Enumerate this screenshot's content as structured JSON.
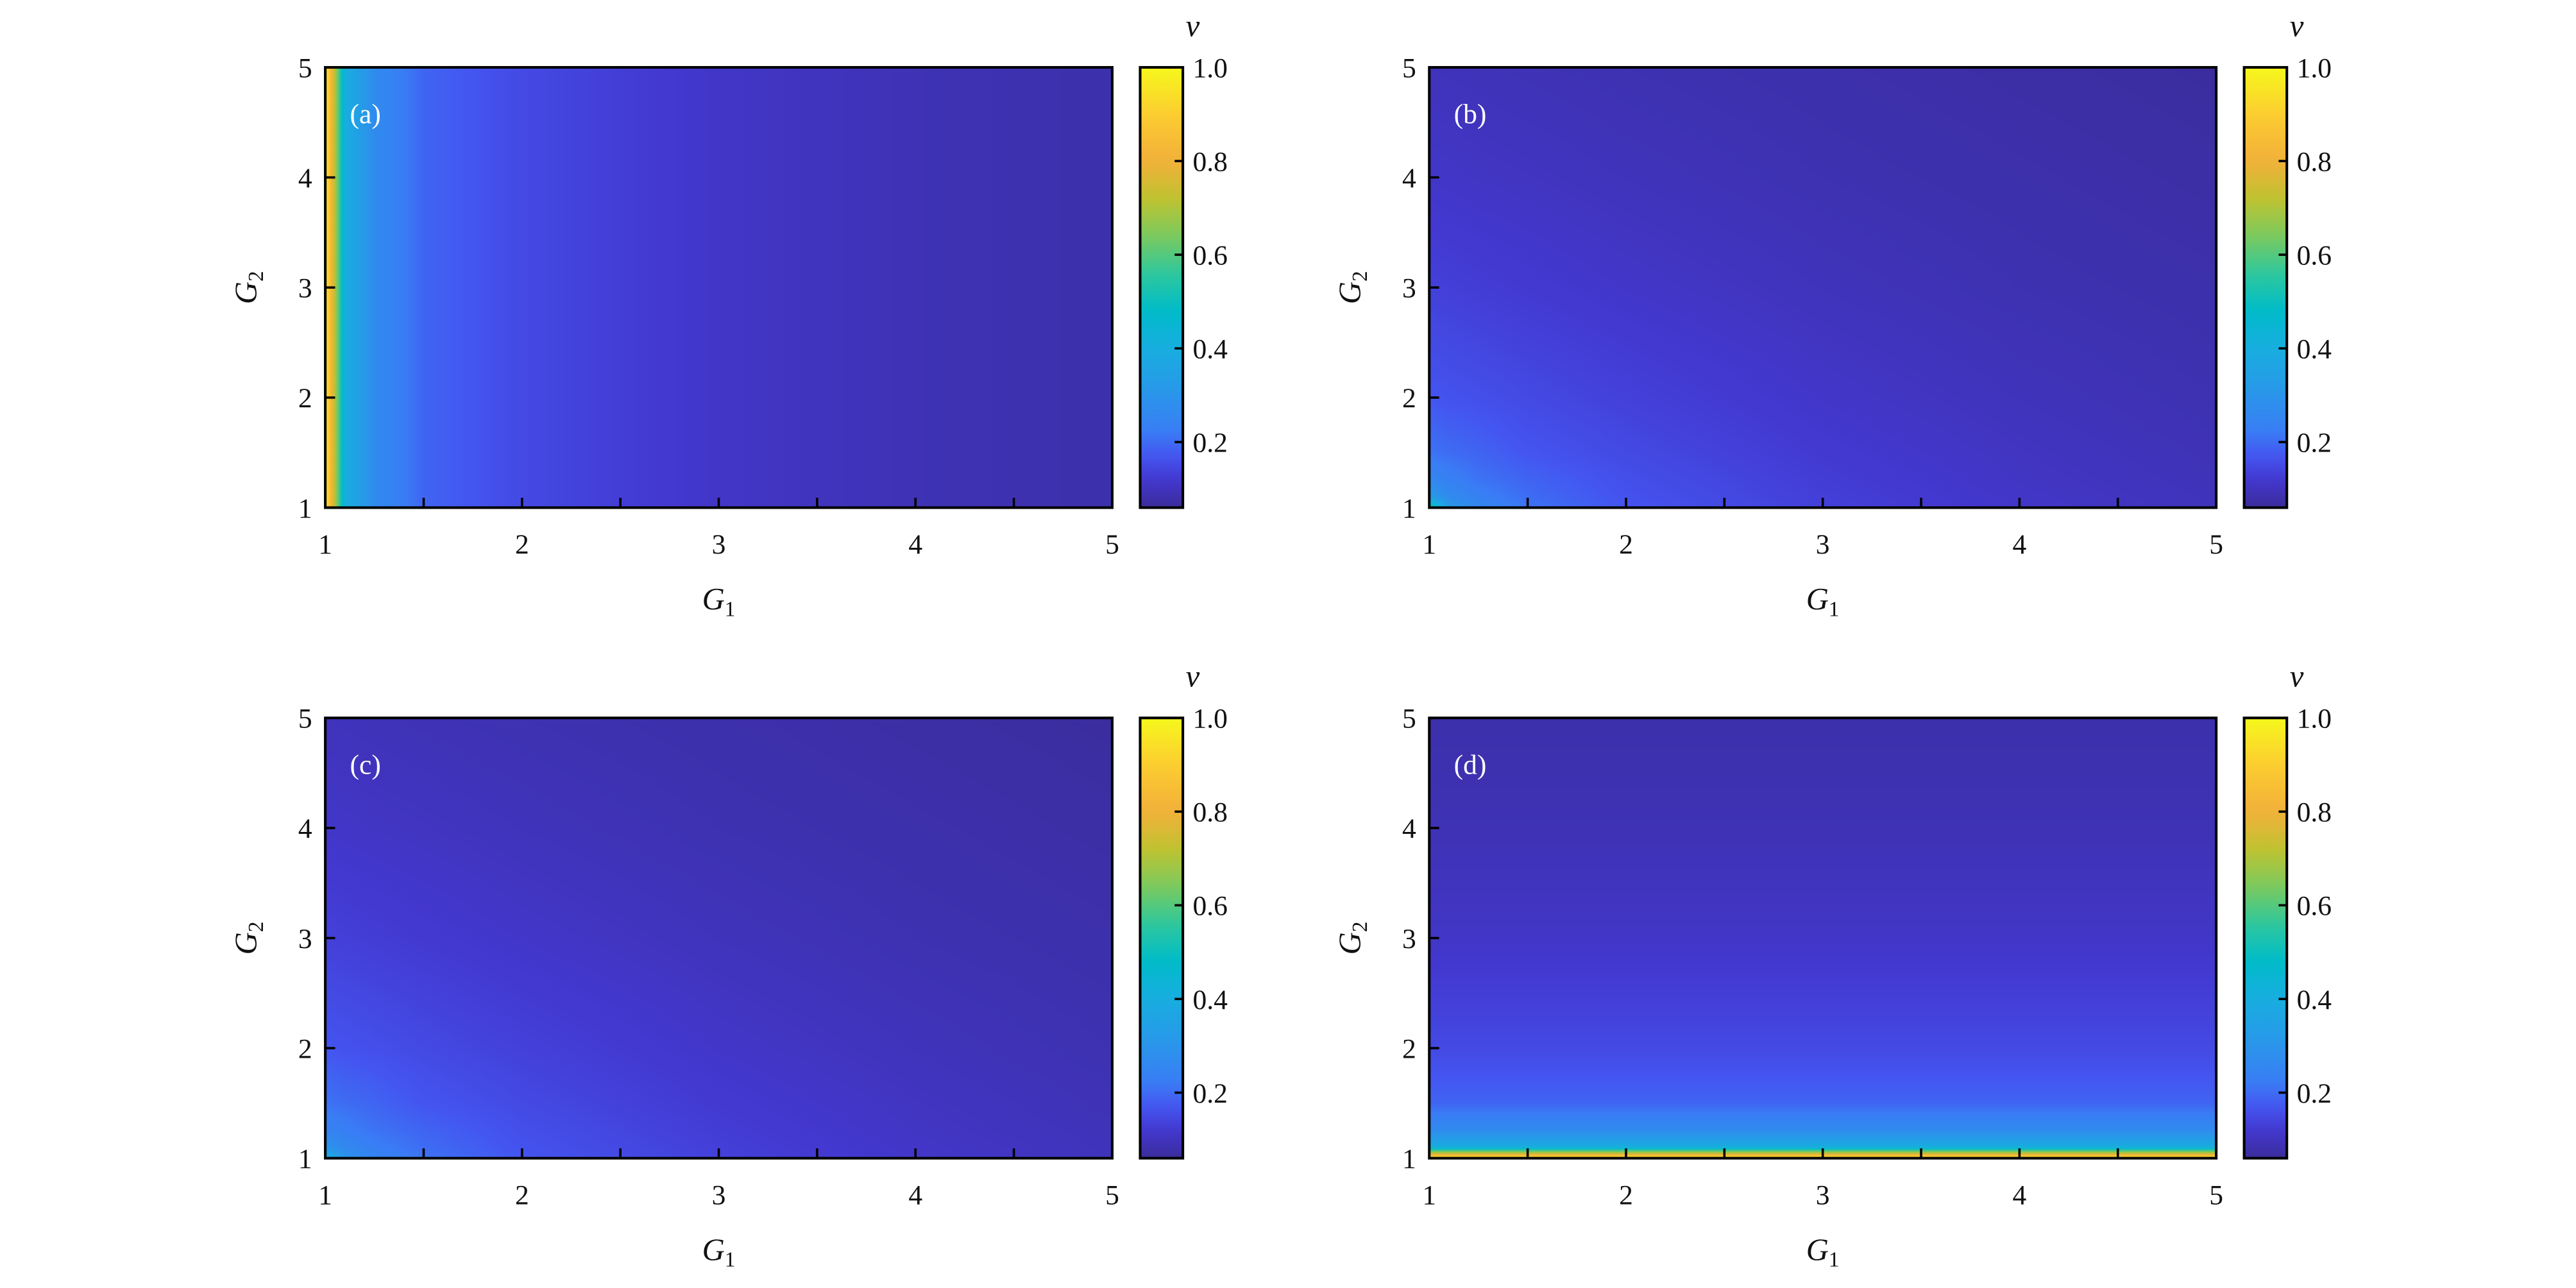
{
  "chart_data": [
    {
      "type": "heatmap",
      "panel_label": "(a)",
      "xlabel": "G",
      "xlabel_sub": "1",
      "ylabel": "G",
      "ylabel_sub": "2",
      "colorbar_label": "v",
      "xlim": [
        1,
        5
      ],
      "ylim": [
        1,
        5
      ],
      "clim": [
        0.06,
        1.0
      ],
      "xticks": [
        "1",
        "2",
        "3",
        "4",
        "5"
      ],
      "yticks": [
        "1",
        "2",
        "3",
        "4",
        "5"
      ],
      "cticks": [
        "0.2",
        "0.4",
        "0.6",
        "0.8",
        "1.0"
      ],
      "x": [
        1,
        1.1,
        1.25,
        1.5,
        2,
        3,
        4,
        5
      ],
      "y": [
        1,
        1.1,
        1.25,
        1.5,
        2,
        3,
        4,
        5
      ],
      "z": [
        [
          1.0,
          0.4,
          0.27,
          0.19,
          0.15,
          0.11,
          0.09,
          0.08
        ],
        [
          1.0,
          0.4,
          0.27,
          0.19,
          0.15,
          0.11,
          0.09,
          0.08
        ],
        [
          1.0,
          0.4,
          0.27,
          0.19,
          0.15,
          0.11,
          0.09,
          0.08
        ],
        [
          1.0,
          0.4,
          0.27,
          0.19,
          0.15,
          0.11,
          0.09,
          0.08
        ],
        [
          1.0,
          0.4,
          0.27,
          0.19,
          0.15,
          0.11,
          0.09,
          0.08
        ],
        [
          1.0,
          0.4,
          0.27,
          0.19,
          0.15,
          0.11,
          0.09,
          0.08
        ],
        [
          1.0,
          0.4,
          0.27,
          0.19,
          0.15,
          0.11,
          0.09,
          0.08
        ],
        [
          1.0,
          0.4,
          0.27,
          0.19,
          0.15,
          0.11,
          0.09,
          0.08
        ]
      ]
    },
    {
      "type": "heatmap",
      "panel_label": "(b)",
      "xlabel": "G",
      "xlabel_sub": "1",
      "ylabel": "G",
      "ylabel_sub": "2",
      "colorbar_label": "v",
      "xlim": [
        1,
        5
      ],
      "ylim": [
        1,
        5
      ],
      "clim": [
        0.06,
        1.0
      ],
      "xticks": [
        "1",
        "2",
        "3",
        "4",
        "5"
      ],
      "yticks": [
        "1",
        "2",
        "3",
        "4",
        "5"
      ],
      "cticks": [
        "0.2",
        "0.4",
        "0.6",
        "0.8",
        "1.0"
      ],
      "x": [
        1,
        1.1,
        1.25,
        1.5,
        2,
        3,
        4,
        5
      ],
      "y": [
        1,
        1.1,
        1.25,
        1.5,
        2,
        3,
        4,
        5
      ],
      "z": [
        [
          0.55,
          0.32,
          0.26,
          0.21,
          0.17,
          0.135,
          0.112,
          0.097
        ],
        [
          0.32,
          0.27,
          0.235,
          0.2,
          0.165,
          0.132,
          0.11,
          0.096
        ],
        [
          0.26,
          0.235,
          0.21,
          0.19,
          0.16,
          0.128,
          0.107,
          0.094
        ],
        [
          0.21,
          0.2,
          0.19,
          0.17,
          0.15,
          0.122,
          0.104,
          0.091
        ],
        [
          0.17,
          0.165,
          0.16,
          0.15,
          0.135,
          0.112,
          0.097,
          0.086
        ],
        [
          0.135,
          0.132,
          0.128,
          0.122,
          0.112,
          0.097,
          0.086,
          0.079
        ],
        [
          0.112,
          0.11,
          0.107,
          0.104,
          0.097,
          0.086,
          0.079,
          0.072
        ],
        [
          0.097,
          0.096,
          0.094,
          0.091,
          0.086,
          0.079,
          0.072,
          0.066
        ]
      ]
    },
    {
      "type": "heatmap",
      "panel_label": "(c)",
      "xlabel": "G",
      "xlabel_sub": "1",
      "ylabel": "G",
      "ylabel_sub": "2",
      "colorbar_label": "v",
      "xlim": [
        1,
        5
      ],
      "ylim": [
        1,
        5
      ],
      "clim": [
        0.06,
        1.0
      ],
      "xticks": [
        "1",
        "2",
        "3",
        "4",
        "5"
      ],
      "yticks": [
        "1",
        "2",
        "3",
        "4",
        "5"
      ],
      "cticks": [
        "0.2",
        "0.4",
        "0.6",
        "0.8",
        "1.0"
      ],
      "x": [
        1,
        1.1,
        1.25,
        1.5,
        2,
        3,
        4,
        5
      ],
      "y": [
        1,
        1.1,
        1.25,
        1.5,
        2,
        3,
        4,
        5
      ],
      "z": [
        [
          0.42,
          0.3,
          0.25,
          0.21,
          0.17,
          0.135,
          0.112,
          0.097
        ],
        [
          0.3,
          0.26,
          0.23,
          0.2,
          0.165,
          0.132,
          0.11,
          0.096
        ],
        [
          0.25,
          0.23,
          0.21,
          0.19,
          0.16,
          0.128,
          0.107,
          0.094
        ],
        [
          0.21,
          0.2,
          0.19,
          0.17,
          0.15,
          0.122,
          0.104,
          0.091
        ],
        [
          0.17,
          0.165,
          0.16,
          0.15,
          0.135,
          0.112,
          0.097,
          0.086
        ],
        [
          0.135,
          0.132,
          0.128,
          0.122,
          0.112,
          0.097,
          0.086,
          0.079
        ],
        [
          0.112,
          0.11,
          0.107,
          0.104,
          0.097,
          0.086,
          0.079,
          0.072
        ],
        [
          0.097,
          0.096,
          0.094,
          0.091,
          0.086,
          0.079,
          0.072,
          0.066
        ]
      ]
    },
    {
      "type": "heatmap",
      "panel_label": "(d)",
      "xlabel": "G",
      "xlabel_sub": "1",
      "ylabel": "G",
      "ylabel_sub": "2",
      "colorbar_label": "v",
      "xlim": [
        1,
        5
      ],
      "ylim": [
        1,
        5
      ],
      "clim": [
        0.06,
        1.0
      ],
      "xticks": [
        "1",
        "2",
        "3",
        "4",
        "5"
      ],
      "yticks": [
        "1",
        "2",
        "3",
        "4",
        "5"
      ],
      "cticks": [
        "0.2",
        "0.4",
        "0.6",
        "0.8",
        "1.0"
      ],
      "x": [
        1,
        1.1,
        1.25,
        1.5,
        2,
        3,
        4,
        5
      ],
      "y": [
        1,
        1.1,
        1.25,
        1.5,
        2,
        3,
        4,
        5
      ],
      "z": [
        [
          1.0,
          1.0,
          1.0,
          1.0,
          1.0,
          1.0,
          1.0,
          1.0
        ],
        [
          0.4,
          0.4,
          0.4,
          0.4,
          0.4,
          0.4,
          0.4,
          0.4
        ],
        [
          0.27,
          0.27,
          0.27,
          0.27,
          0.27,
          0.27,
          0.27,
          0.27
        ],
        [
          0.19,
          0.19,
          0.19,
          0.19,
          0.19,
          0.19,
          0.19,
          0.19
        ],
        [
          0.15,
          0.15,
          0.15,
          0.15,
          0.15,
          0.15,
          0.15,
          0.15
        ],
        [
          0.11,
          0.11,
          0.11,
          0.11,
          0.11,
          0.11,
          0.11,
          0.11
        ],
        [
          0.09,
          0.09,
          0.09,
          0.09,
          0.09,
          0.09,
          0.09,
          0.09
        ],
        [
          0.08,
          0.08,
          0.08,
          0.08,
          0.08,
          0.08,
          0.08,
          0.08
        ]
      ]
    }
  ],
  "colormap": [
    [
      0.06,
      "#3a2c9a"
    ],
    [
      0.12,
      "#4338d0"
    ],
    [
      0.17,
      "#4455f0"
    ],
    [
      0.22,
      "#3a7cf5"
    ],
    [
      0.3,
      "#2a95ea"
    ],
    [
      0.4,
      "#18aee0"
    ],
    [
      0.48,
      "#00bcc9"
    ],
    [
      0.56,
      "#2ec79c"
    ],
    [
      0.64,
      "#7cca5e"
    ],
    [
      0.72,
      "#c0c230"
    ],
    [
      0.8,
      "#f2b03a"
    ],
    [
      0.9,
      "#fccd30"
    ],
    [
      1.0,
      "#f6f81c"
    ]
  ]
}
